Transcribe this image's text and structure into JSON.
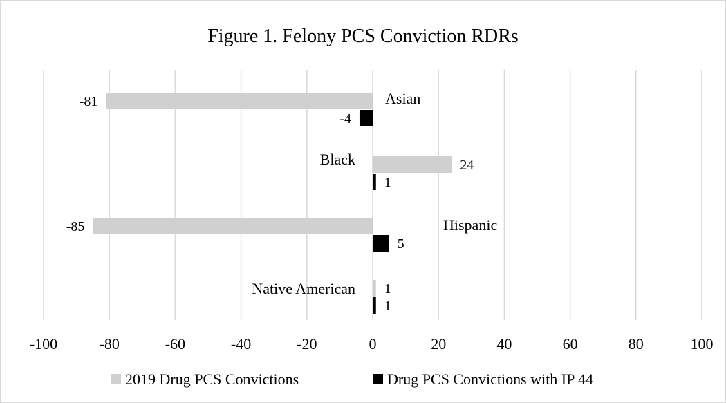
{
  "chart_data": {
    "type": "bar",
    "orientation": "horizontal",
    "title": "Figure 1. Felony PCS Conviction RDRs",
    "categories": [
      "Asian",
      "Black",
      "Hispanic",
      "Native American"
    ],
    "series": [
      {
        "name": "2019 Drug PCS Convictions",
        "values": [
          -81,
          24,
          -85,
          1
        ],
        "color": "#d0d0d0"
      },
      {
        "name": "Drug PCS Convictions with IP 44",
        "values": [
          -4,
          1,
          5,
          1
        ],
        "color": "#000000"
      }
    ],
    "xlim": [
      -100,
      100
    ],
    "xticks": [
      -100,
      -80,
      -60,
      -40,
      -20,
      0,
      20,
      40,
      60,
      80,
      100
    ],
    "grid": true,
    "legend_position": "bottom"
  }
}
